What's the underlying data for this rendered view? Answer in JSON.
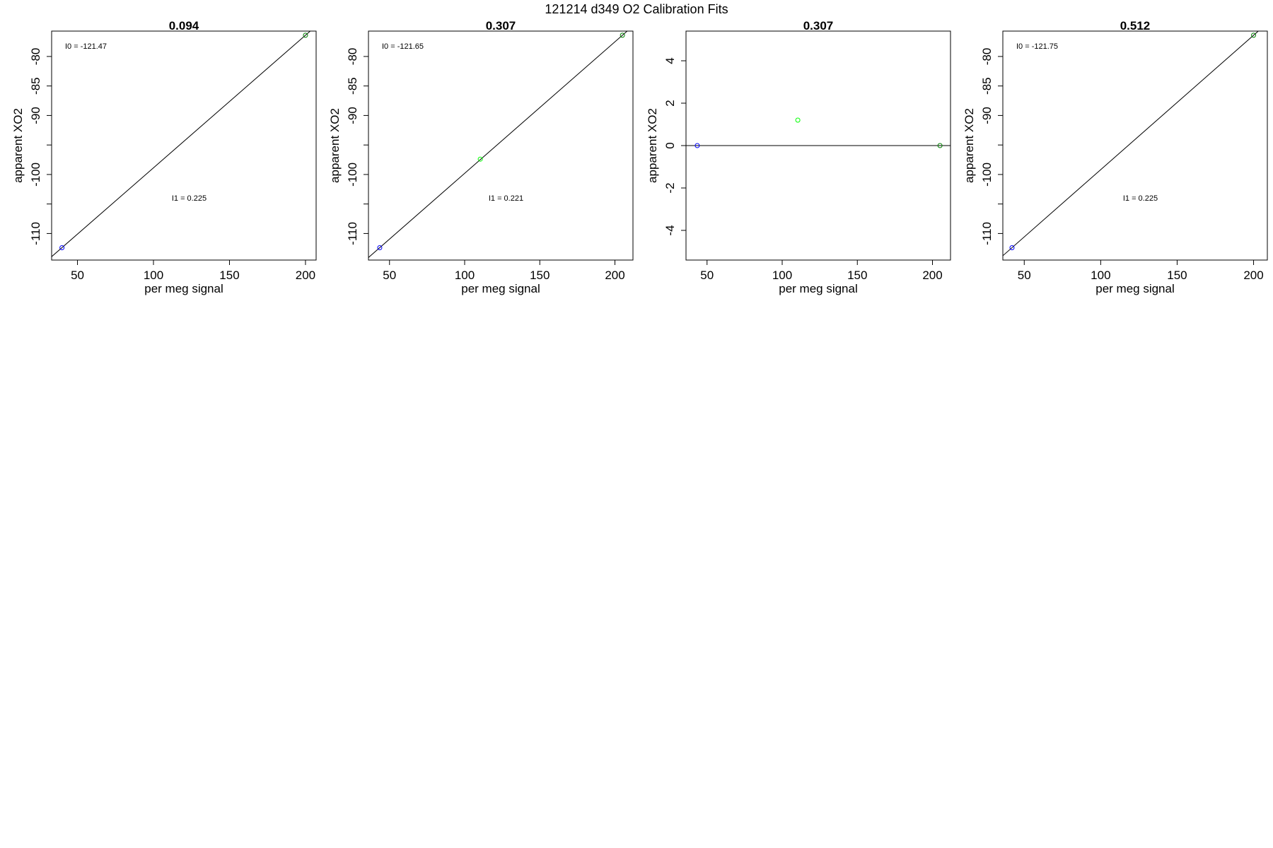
{
  "figure": {
    "title": "121214   d349   O2 Calibration Fits"
  },
  "colors": {
    "background": "#ffffff",
    "axis": "#000000",
    "fit_line": "#000000",
    "point_low": "#0000ff",
    "point_mid": "#00ff00",
    "point_high": "#008000"
  },
  "chart_data": [
    {
      "type": "scatter",
      "title": "0.094",
      "xlabel": "per meg signal",
      "ylabel": "apparent XO2",
      "xlim": [
        33,
        207
      ],
      "ylim": [
        -114.5,
        -75.7
      ],
      "xticks": [
        50,
        100,
        150,
        200
      ],
      "yticks": [
        -80,
        -85,
        -90,
        -95,
        -100,
        -105,
        -110
      ],
      "ytick_labels": [
        "-80",
        "-85",
        "-90",
        "",
        "-100",
        "",
        "-110"
      ],
      "grid": false,
      "points": [
        {
          "x": 39.8,
          "y": -112.4,
          "color": "#0000ff"
        },
        {
          "x": 200.0,
          "y": -76.4,
          "color": "#008000"
        }
      ],
      "fit": {
        "type": "line",
        "x1": 39.8,
        "y1": -112.4,
        "x2": 200.0,
        "y2": -76.4
      },
      "annotations": {
        "intercept_label": "I0 =  -121.47",
        "slope_label": "I1 =  0.225"
      }
    },
    {
      "type": "scatter",
      "title": "0.307",
      "xlabel": "per meg signal",
      "ylabel": "apparent XO2",
      "xlim": [
        36,
        212
      ],
      "ylim": [
        -114.5,
        -75.7
      ],
      "xticks": [
        50,
        100,
        150,
        200
      ],
      "yticks": [
        -80,
        -85,
        -90,
        -95,
        -100,
        -105,
        -110
      ],
      "ytick_labels": [
        "-80",
        "-85",
        "-90",
        "",
        "-100",
        "",
        "-110"
      ],
      "grid": false,
      "points": [
        {
          "x": 43.5,
          "y": -112.4,
          "color": "#0000ff"
        },
        {
          "x": 110.4,
          "y": -97.4,
          "color": "#00ff00"
        },
        {
          "x": 205.0,
          "y": -76.4,
          "color": "#008000"
        }
      ],
      "fit": {
        "type": "line",
        "x1": 43.5,
        "y1": -112.4,
        "x2": 205.0,
        "y2": -76.4
      },
      "annotations": {
        "intercept_label": "I0 =  -121.65",
        "slope_label": "I1 =  0.221"
      }
    },
    {
      "type": "scatter",
      "title": "0.307",
      "xlabel": "per meg signal",
      "ylabel": "apparent XO2",
      "xlim": [
        36,
        212
      ],
      "ylim": [
        -5.4,
        5.4
      ],
      "xticks": [
        50,
        100,
        150,
        200
      ],
      "yticks": [
        4,
        2,
        0,
        -2,
        -4
      ],
      "ytick_labels": [
        "4",
        "2",
        "0",
        "-2",
        "-4"
      ],
      "grid": false,
      "points": [
        {
          "x": 43.5,
          "y": 0.0,
          "color": "#0000ff"
        },
        {
          "x": 110.4,
          "y": 1.2,
          "color": "#00ff00"
        },
        {
          "x": 205.0,
          "y": 0.0,
          "color": "#008000"
        }
      ],
      "fit": {
        "type": "line",
        "x1": 36,
        "y1": 0.0,
        "x2": 212,
        "y2": 0.0
      },
      "annotations": {
        "intercept_label": "",
        "slope_label": ""
      }
    },
    {
      "type": "scatter",
      "title": "0.512",
      "xlabel": "per meg signal",
      "ylabel": "apparent XO2",
      "xlim": [
        36,
        209
      ],
      "ylim": [
        -114.5,
        -75.7
      ],
      "xticks": [
        50,
        100,
        150,
        200
      ],
      "yticks": [
        -80,
        -85,
        -90,
        -95,
        -100,
        -105,
        -110
      ],
      "ytick_labels": [
        "-80",
        "-85",
        "-90",
        "",
        "-100",
        "",
        "-110"
      ],
      "grid": false,
      "points": [
        {
          "x": 42.0,
          "y": -112.4,
          "color": "#0000ff"
        },
        {
          "x": 200.0,
          "y": -76.4,
          "color": "#008000"
        }
      ],
      "fit": {
        "type": "line",
        "x1": 42.0,
        "y1": -112.4,
        "x2": 200.0,
        "y2": -76.4
      },
      "annotations": {
        "intercept_label": "I0 =  -121.75",
        "slope_label": "I1 =  0.225"
      }
    }
  ]
}
